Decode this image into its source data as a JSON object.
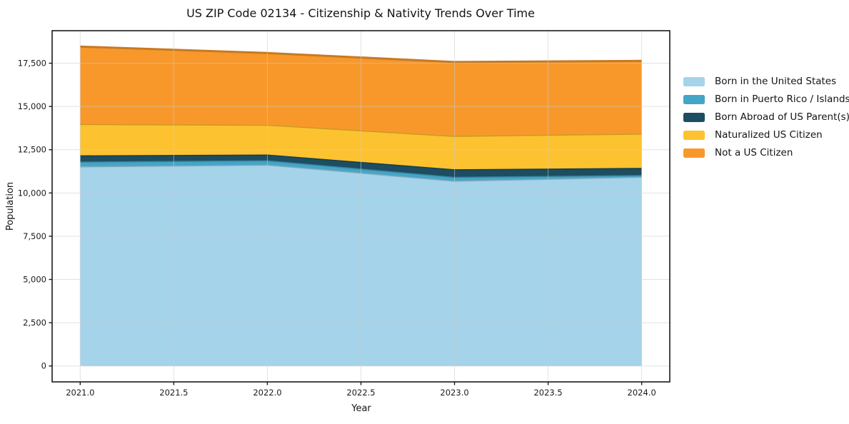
{
  "chart_data": {
    "type": "area",
    "stacked": true,
    "title": "US ZIP Code 02134 - Citizenship & Nativity Trends Over Time",
    "xlabel": "Year",
    "ylabel": "Population",
    "x": [
      2021,
      2022,
      2023,
      2024
    ],
    "series": [
      {
        "name": "Born in the United States",
        "color": "#a4d3ea",
        "values": [
          11540,
          11640,
          10710,
          10940
        ]
      },
      {
        "name": "Born in Puerto Rico / Islands",
        "color": "#45a5c6",
        "values": [
          275,
          250,
          220,
          100
        ]
      },
      {
        "name": "Born Abroad of US Parent(s)",
        "color": "#1d4d60",
        "values": [
          360,
          330,
          440,
          410
        ]
      },
      {
        "name": "Naturalized US Citizen",
        "color": "#fdc22f",
        "values": [
          1815,
          1725,
          1930,
          1985
        ]
      },
      {
        "name": "Not a US Citizen",
        "color": "#f8982b",
        "values": [
          4470,
          4145,
          4270,
          4200
        ]
      }
    ],
    "stack_totals": [
      18460,
      18090,
      17570,
      17635
    ],
    "xticks": [
      2021.0,
      2021.5,
      2022.0,
      2022.5,
      2023.0,
      2023.5,
      2024.0
    ],
    "xtick_labels": [
      "2021.0",
      "2021.5",
      "2022.0",
      "2022.5",
      "2023.0",
      "2023.5",
      "2024.0"
    ],
    "yticks": [
      0,
      2500,
      5000,
      7500,
      10000,
      12500,
      15000,
      17500
    ],
    "ytick_labels": [
      "0",
      "2,500",
      "5,000",
      "7,500",
      "10,000",
      "12,500",
      "15,000",
      "17,500"
    ],
    "xlim": [
      2020.85,
      2024.15
    ],
    "ylim": [
      -920,
      19380
    ],
    "grid": true,
    "grid_color": "#cccccc",
    "spine_color": "#1a1a1a",
    "text_color": "#141414",
    "legend_position": "right"
  }
}
